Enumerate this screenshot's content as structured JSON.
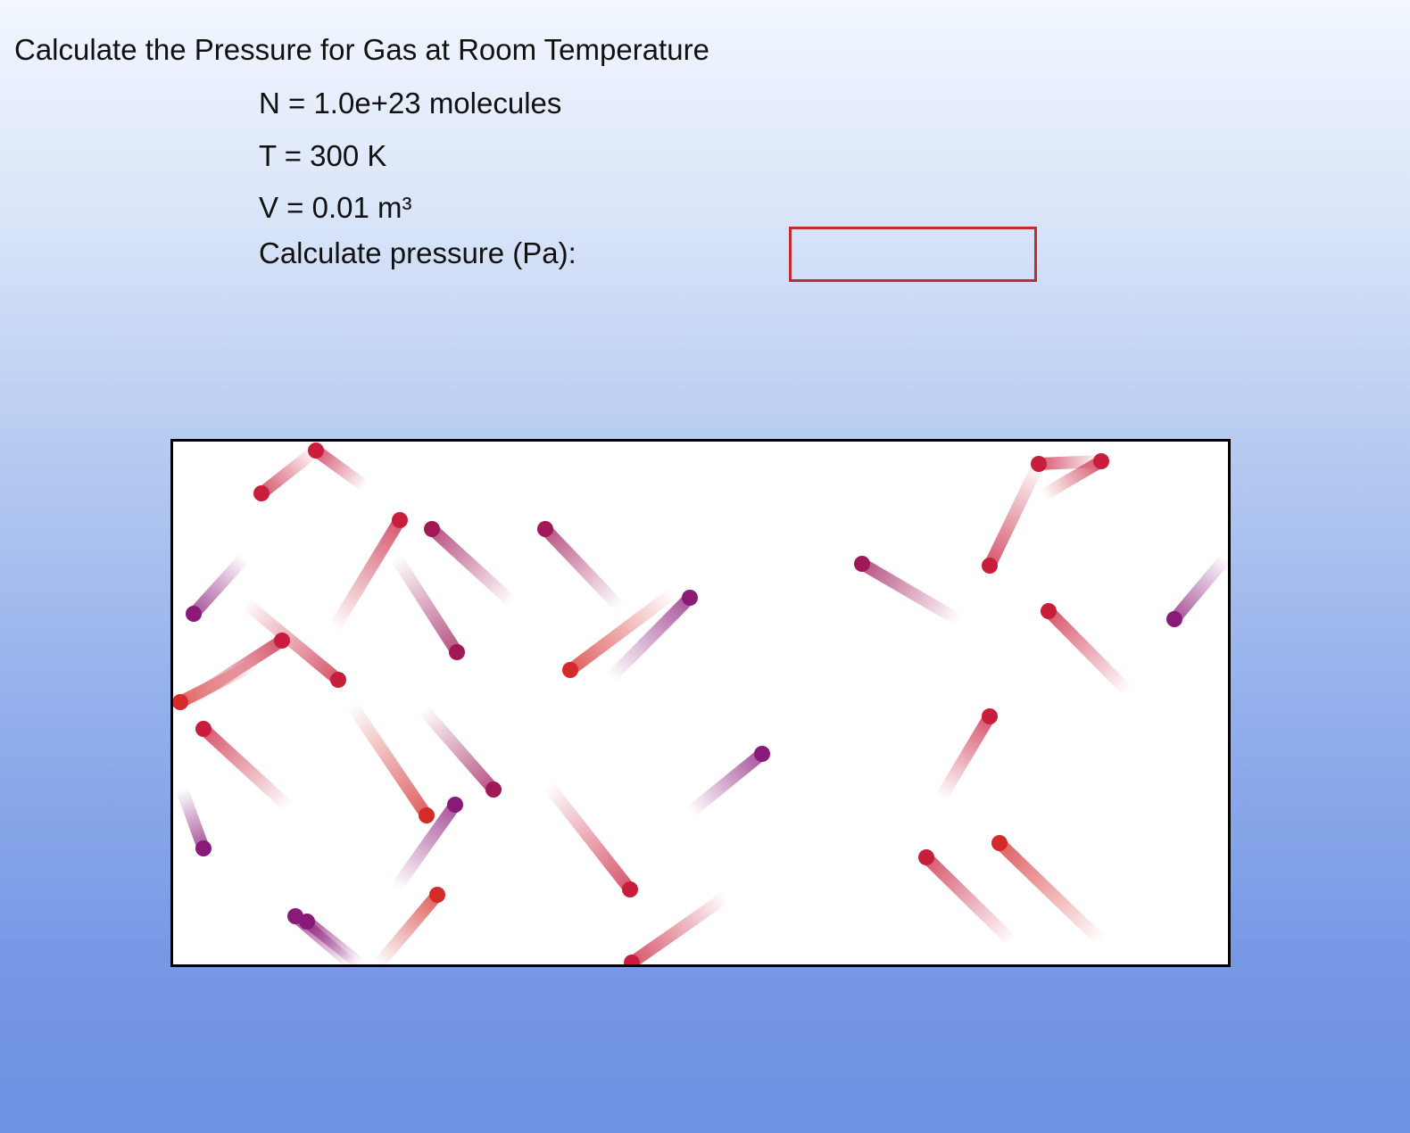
{
  "problem": {
    "title": "Calculate the Pressure for Gas at Room Temperature",
    "n_line": "N = 1.0e+23 molecules",
    "t_line": "T = 300 K",
    "v_line": "V = 0.01 m³",
    "prompt": "Calculate pressure (Pa):"
  },
  "answer": {
    "value": "",
    "placeholder": "",
    "border_color": "#bf2e2e"
  },
  "simulation": {
    "name": "gas-molecule-container",
    "molecule_colors": [
      "#d42a2a",
      "#c81e3c",
      "#a01858",
      "#8a1a78"
    ]
  }
}
